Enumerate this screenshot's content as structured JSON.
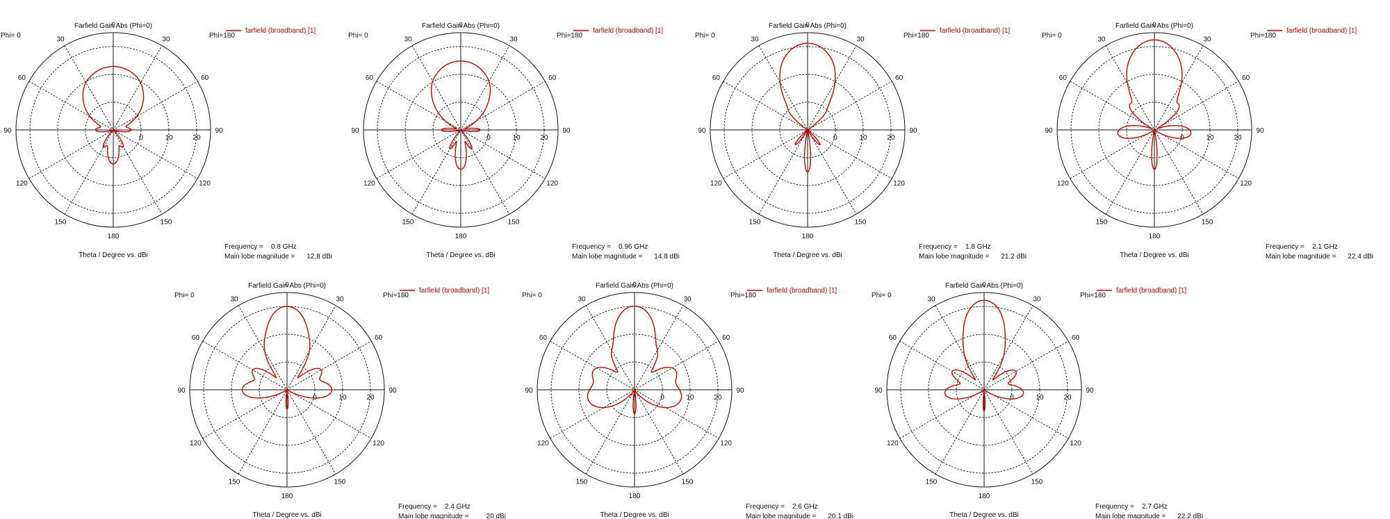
{
  "common": {
    "title": "Farfield Gain Abs (Phi=0)",
    "legend_label": "farfield (broadband) [1]",
    "x_axis_label": "Theta / Degree vs. dBi",
    "phi_left": "Phi=  0",
    "phi_right": "Phi=180",
    "frequency_label": "Frequency =",
    "main_lobe_label": "Main lobe magnitude =",
    "trace_color": "#d40000"
  },
  "chart_data": [
    {
      "type": "polar",
      "title": "Farfield Gain Abs (Phi=0)",
      "frequency": "0.8 GHz",
      "main_lobe": "12.8 dBi",
      "r_ticks": [
        "0",
        "10",
        "20"
      ],
      "angle_ticks": [
        "0",
        "30",
        "60",
        "90",
        "120",
        "150",
        "180",
        "150",
        "120",
        "90",
        "60",
        "30"
      ],
      "rlim_dbi": [
        -10,
        25
      ],
      "lobes": [
        {
          "theta": 0,
          "gain": 12.8,
          "width": 24
        },
        {
          "theta": 180,
          "gain": 2,
          "width": 10
        },
        {
          "theta": 25,
          "gain": -3,
          "width": 6
        },
        {
          "theta": -30,
          "gain": -3,
          "width": 6
        },
        {
          "theta": 150,
          "gain": -4,
          "width": 6
        },
        {
          "theta": -150,
          "gain": -4,
          "width": 6
        },
        {
          "theta": 90,
          "gain": -5,
          "width": 8
        },
        {
          "theta": -90,
          "gain": -5,
          "width": 8
        }
      ]
    },
    {
      "type": "polar",
      "title": "Farfield Gain Abs (Phi=0)",
      "frequency": "0.96 GHz",
      "main_lobe": "14.8 dBi",
      "r_ticks": [
        "0",
        "10",
        "20"
      ],
      "angle_ticks": [
        "0",
        "30",
        "60",
        "90",
        "120",
        "150",
        "180",
        "150",
        "120",
        "90",
        "60",
        "30"
      ],
      "rlim_dbi": [
        -10,
        25
      ],
      "lobes": [
        {
          "theta": 0,
          "gain": 14.8,
          "width": 20
        },
        {
          "theta": 180,
          "gain": 4,
          "width": 8
        },
        {
          "theta": 30,
          "gain": -2,
          "width": 5
        },
        {
          "theta": -30,
          "gain": -2,
          "width": 5
        },
        {
          "theta": 150,
          "gain": -3,
          "width": 5
        },
        {
          "theta": -150,
          "gain": -3,
          "width": 5
        },
        {
          "theta": 90,
          "gain": -4,
          "width": 6
        },
        {
          "theta": -90,
          "gain": -4,
          "width": 6
        }
      ]
    },
    {
      "type": "polar",
      "title": "Farfield Gain Abs (Phi=0)",
      "frequency": "1.8 GHz",
      "main_lobe": "21.2 dBi",
      "r_ticks": [
        "0",
        "10",
        "20"
      ],
      "angle_ticks": [
        "0",
        "30",
        "60",
        "90",
        "120",
        "150",
        "180",
        "150",
        "120",
        "90",
        "60",
        "30"
      ],
      "rlim_dbi": [
        -10,
        25
      ],
      "lobes": [
        {
          "theta": 0,
          "gain": 21.2,
          "width": 13
        },
        {
          "theta": 180,
          "gain": 5,
          "width": 4
        },
        {
          "theta": 20,
          "gain": 2,
          "width": 4
        },
        {
          "theta": -20,
          "gain": 2,
          "width": 4
        },
        {
          "theta": 45,
          "gain": -3,
          "width": 4
        },
        {
          "theta": -45,
          "gain": -3,
          "width": 4
        },
        {
          "theta": 140,
          "gain": -4,
          "width": 4
        },
        {
          "theta": -140,
          "gain": -4,
          "width": 4
        }
      ]
    },
    {
      "type": "polar",
      "title": "Farfield Gain Abs (Phi=0)",
      "frequency": "2.1 GHz",
      "main_lobe": "22.4 dBi",
      "r_ticks": [
        "0",
        "10",
        "20"
      ],
      "angle_ticks": [
        "0",
        "30",
        "60",
        "90",
        "120",
        "150",
        "180",
        "150",
        "120",
        "90",
        "60",
        "30"
      ],
      "rlim_dbi": [
        -10,
        25
      ],
      "lobes": [
        {
          "theta": 0,
          "gain": 22.4,
          "width": 12
        },
        {
          "theta": 180,
          "gain": 4,
          "width": 4
        },
        {
          "theta": 22,
          "gain": 4,
          "width": 5
        },
        {
          "theta": -22,
          "gain": 4,
          "width": 5
        },
        {
          "theta": 45,
          "gain": 2,
          "width": 6
        },
        {
          "theta": -45,
          "gain": 2,
          "width": 6
        },
        {
          "theta": 95,
          "gain": 3,
          "width": 10
        },
        {
          "theta": -95,
          "gain": 3,
          "width": 10
        }
      ]
    },
    {
      "type": "polar",
      "title": "Farfield Gain Abs (Phi=0)",
      "frequency": "2.4 GHz",
      "main_lobe": "20 dBi",
      "r_ticks": [
        "0",
        "10",
        "20"
      ],
      "angle_ticks": [
        "0",
        "30",
        "60",
        "90",
        "120",
        "150",
        "180",
        "150",
        "120",
        "90",
        "60",
        "30"
      ],
      "rlim_dbi": [
        -10,
        25
      ],
      "lobes": [
        {
          "theta": 0,
          "gain": 20,
          "width": 10
        },
        {
          "theta": 180,
          "gain": -4,
          "width": 4
        },
        {
          "theta": 25,
          "gain": 6,
          "width": 6
        },
        {
          "theta": -25,
          "gain": 6,
          "width": 6
        },
        {
          "theta": 60,
          "gain": 4,
          "width": 8
        },
        {
          "theta": -60,
          "gain": 4,
          "width": 8
        },
        {
          "theta": 90,
          "gain": 6,
          "width": 10
        },
        {
          "theta": -90,
          "gain": 6,
          "width": 10
        }
      ]
    },
    {
      "type": "polar",
      "title": "Farfield Gain Abs (Phi=0)",
      "frequency": "2.6 GHz",
      "main_lobe": "20.1 dBi",
      "r_ticks": [
        "0",
        "10",
        "20"
      ],
      "angle_ticks": [
        "0",
        "30",
        "60",
        "90",
        "120",
        "150",
        "180",
        "150",
        "120",
        "90",
        "60",
        "30"
      ],
      "rlim_dbi": [
        -10,
        25
      ],
      "lobes": [
        {
          "theta": 0,
          "gain": 20.1,
          "width": 10
        },
        {
          "theta": 180,
          "gain": -2,
          "width": 4
        },
        {
          "theta": 30,
          "gain": 5,
          "width": 6
        },
        {
          "theta": -30,
          "gain": 5,
          "width": 6
        },
        {
          "theta": 65,
          "gain": 6,
          "width": 10
        },
        {
          "theta": -65,
          "gain": 6,
          "width": 10
        },
        {
          "theta": 100,
          "gain": 7,
          "width": 14
        },
        {
          "theta": -100,
          "gain": 7,
          "width": 14
        }
      ]
    },
    {
      "type": "polar",
      "title": "Farfield Gain Abs (Phi=0)",
      "frequency": "2.7 GHz",
      "main_lobe": "22.2 dBi",
      "r_ticks": [
        "0",
        "10",
        "20"
      ],
      "angle_ticks": [
        "0",
        "30",
        "60",
        "90",
        "120",
        "150",
        "180",
        "150",
        "120",
        "90",
        "60",
        "30"
      ],
      "rlim_dbi": [
        -10,
        25
      ],
      "lobes": [
        {
          "theta": 0,
          "gain": 22.2,
          "width": 9
        },
        {
          "theta": 180,
          "gain": -3,
          "width": 3
        },
        {
          "theta": 25,
          "gain": 4,
          "width": 6
        },
        {
          "theta": -25,
          "gain": 4,
          "width": 6
        },
        {
          "theta": 60,
          "gain": 3,
          "width": 8
        },
        {
          "theta": -60,
          "gain": 3,
          "width": 8
        },
        {
          "theta": 95,
          "gain": 4,
          "width": 10
        },
        {
          "theta": -95,
          "gain": 4,
          "width": 10
        }
      ]
    }
  ]
}
